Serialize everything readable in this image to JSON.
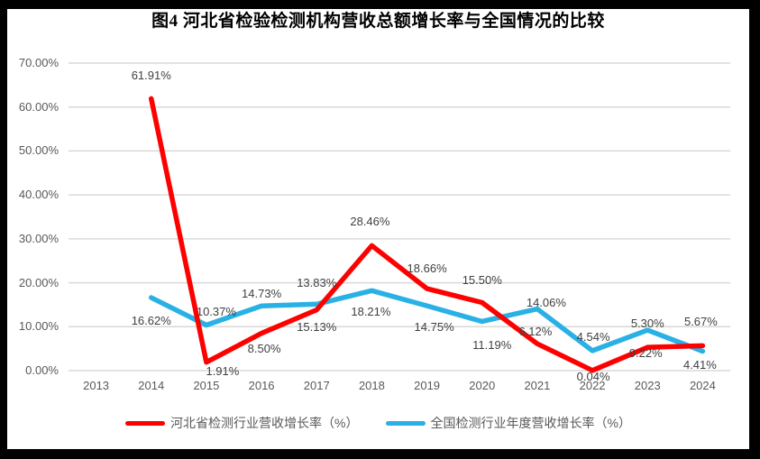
{
  "figure": {
    "title": "图4 河北省检验检测机构营收总额增长率与全国情况的比较"
  },
  "chart_data": {
    "type": "line",
    "title": "图4 河北省检验检测机构营收总额增长率与全国情况的比较",
    "categories": [
      "2013",
      "2014",
      "2015",
      "2016",
      "2017",
      "2018",
      "2019",
      "2020",
      "2021",
      "2022",
      "2023",
      "2024"
    ],
    "series": [
      {
        "name": "河北省检测行业营收增长率（%）",
        "color": "#FE0000",
        "values": [
          null,
          61.91,
          1.91,
          8.5,
          13.83,
          28.46,
          18.66,
          15.5,
          6.12,
          0.04,
          5.3,
          5.67
        ],
        "labels": [
          null,
          "61.91%",
          "1.91%",
          "8.50%",
          "13.83%",
          "28.46%",
          "18.66%",
          "15.50%",
          "6.12%",
          "0.04%",
          "5.30%",
          "5.67%"
        ]
      },
      {
        "name": "全国检测行业年度营收增长率（%）",
        "color": "#29B1E5",
        "values": [
          null,
          16.62,
          10.37,
          14.73,
          15.13,
          18.21,
          14.75,
          11.19,
          14.06,
          4.54,
          9.22,
          4.41
        ],
        "labels": [
          null,
          "16.62%",
          "10.37%",
          "14.73%",
          "15.13%",
          "18.21%",
          "14.75%",
          "11.19%",
          "14.06%",
          "4.54%",
          "9.22%",
          "4.41%"
        ]
      }
    ],
    "y_axis": {
      "min": 0,
      "max": 70,
      "tick_values": [
        0,
        10,
        20,
        30,
        40,
        50,
        60,
        70
      ],
      "tick_labels": [
        "0.00%",
        "10.00%",
        "20.00%",
        "30.00%",
        "40.00%",
        "50.00%",
        "60.00%",
        "70.00%"
      ]
    },
    "grid": true,
    "legend_position": "bottom",
    "colors": {
      "gridline": "#D9D9D9",
      "axis_text": "#595959",
      "data_label_text": "#3F3F3F",
      "plot_background": "#FFFFFF",
      "frame": "#000000"
    }
  }
}
